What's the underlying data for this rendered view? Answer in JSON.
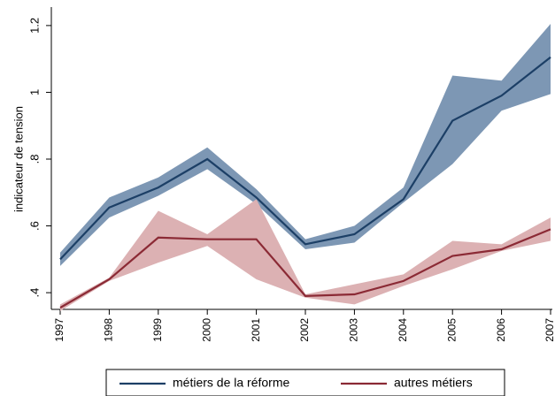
{
  "chart_data": {
    "type": "line",
    "y_label": "indicateur de tension",
    "x": [
      1997,
      1998,
      1999,
      2000,
      2001,
      2002,
      2003,
      2004,
      2005,
      2006,
      2007
    ],
    "xlim": [
      1997,
      2007
    ],
    "xticks": [
      1997,
      1998,
      1999,
      2000,
      2001,
      2002,
      2003,
      2004,
      2005,
      2006,
      2007
    ],
    "ylim": [
      0.35,
      1.25
    ],
    "yticks": [
      {
        "value": 0.4,
        "label": ".4"
      },
      {
        "value": 0.6,
        "label": ".6"
      },
      {
        "value": 0.8,
        "label": ".8"
      },
      1,
      1.2
    ],
    "series": [
      {
        "name": "métiers de la réforme",
        "color": "#1c3f66",
        "band_color": "#7d97b4",
        "values": [
          0.5,
          0.655,
          0.715,
          0.8,
          0.685,
          0.545,
          0.575,
          0.68,
          0.915,
          0.99,
          1.105
        ],
        "upper": [
          0.52,
          0.685,
          0.745,
          0.835,
          0.71,
          0.56,
          0.6,
          0.715,
          1.05,
          1.035,
          1.205
        ],
        "lower": [
          0.48,
          0.625,
          0.69,
          0.77,
          0.665,
          0.53,
          0.55,
          0.67,
          0.785,
          0.945,
          0.995
        ]
      },
      {
        "name": "autres métiers",
        "color": "#8b2a35",
        "band_color": "#dcb1b3",
        "values": [
          0.355,
          0.44,
          0.565,
          0.56,
          0.56,
          0.39,
          0.395,
          0.435,
          0.51,
          0.53,
          0.59
        ],
        "upper": [
          0.365,
          0.445,
          0.645,
          0.575,
          0.68,
          0.395,
          0.425,
          0.455,
          0.555,
          0.545,
          0.625
        ],
        "lower": [
          0.345,
          0.435,
          0.49,
          0.54,
          0.44,
          0.385,
          0.365,
          0.42,
          0.47,
          0.525,
          0.555
        ]
      }
    ]
  }
}
